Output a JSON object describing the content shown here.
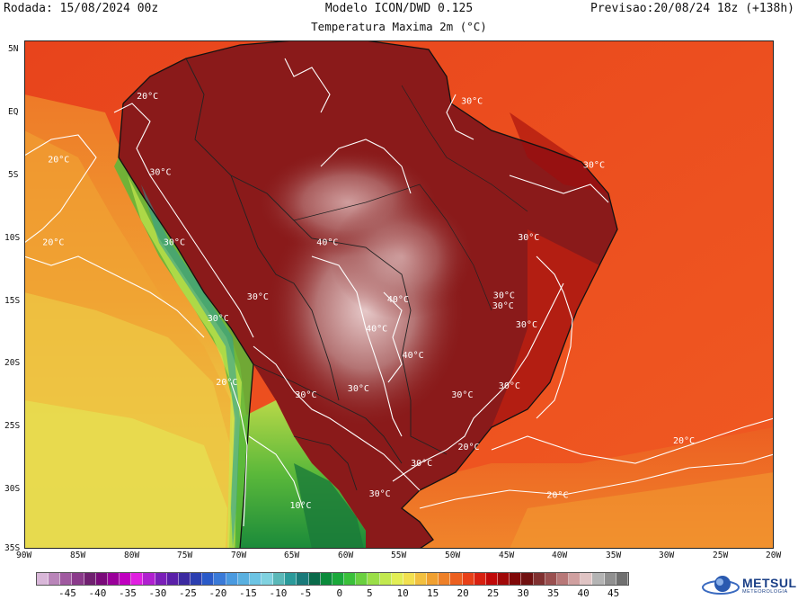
{
  "header": {
    "run": "Rodada: 15/08/2024 00z",
    "model": "Modelo ICON/DWD 0.125",
    "valid": "Previsao:20/08/24 18z (+138h)",
    "subtitle": "Temperatura Maxima 2m (°C)"
  },
  "axes": {
    "lat_labels": [
      "5N",
      "EQ",
      "5S",
      "10S",
      "15S",
      "20S",
      "25S",
      "30S",
      "35S"
    ],
    "lon_labels": [
      "90W",
      "85W",
      "80W",
      "75W",
      "70W",
      "65W",
      "60W",
      "55W",
      "50W",
      "45W",
      "40W",
      "35W",
      "30W",
      "25W",
      "20W"
    ]
  },
  "colorbar": {
    "labels": [
      "-45",
      "-40",
      "-35",
      "-30",
      "-25",
      "-20",
      "-15",
      "-10",
      "-5",
      "0",
      "5",
      "10",
      "15",
      "20",
      "25",
      "30",
      "35",
      "40",
      "45"
    ],
    "colors": [
      "#d9b7d9",
      "#b985b9",
      "#a05aa0",
      "#8a3a8a",
      "#702070",
      "#7a0a7a",
      "#9a009a",
      "#c000c0",
      "#e020e0",
      "#b020d0",
      "#7a1fb8",
      "#5a1fa8",
      "#3c2aa0",
      "#2c3fb0",
      "#2a5ac8",
      "#3a7ad8",
      "#4a9ae0",
      "#5ab0e0",
      "#6cc4e4",
      "#80d2e0",
      "#5ab8b8",
      "#2a9a9a",
      "#1a7a7a",
      "#0a6a4a",
      "#0a8a3a",
      "#1aa83a",
      "#3ac03a",
      "#6ad040",
      "#9ade48",
      "#c2e84e",
      "#e2ee55",
      "#f2e050",
      "#f2c040",
      "#f0a030",
      "#ee8028",
      "#ec6020",
      "#e84018",
      "#d82010",
      "#c00808",
      "#a00808",
      "#800808",
      "#701010",
      "#803030",
      "#9a5050",
      "#b87878",
      "#d0a0a0",
      "#e0c4c4",
      "#b4b4b4",
      "#909090",
      "#707070"
    ],
    "logo_text": "METSUL",
    "logo_sub": "METEOROLOGIA"
  },
  "contours": [
    {
      "label": "30°C",
      "lon": -49.2,
      "lat": 0.0
    },
    {
      "label": "30°C",
      "lon": -37.8,
      "lat": -5.0
    },
    {
      "label": "30°C",
      "lon": -43.9,
      "lat": -10.7
    },
    {
      "label": "30°C",
      "lon": -46.2,
      "lat": -15.3
    },
    {
      "label": "30°C",
      "lon": -46.3,
      "lat": -16.1
    },
    {
      "label": "30°C",
      "lon": -44.1,
      "lat": -17.6
    },
    {
      "label": "30°C",
      "lon": -45.7,
      "lat": -22.4
    },
    {
      "label": "30°C",
      "lon": -50.1,
      "lat": -23.1
    },
    {
      "label": "30°C",
      "lon": -59.8,
      "lat": -22.6
    },
    {
      "label": "30°C",
      "lon": -53.9,
      "lat": -28.5
    },
    {
      "label": "30°C",
      "lon": -78.3,
      "lat": -5.6
    },
    {
      "label": "30°C",
      "lon": -77.0,
      "lat": -11.1
    },
    {
      "label": "30°C",
      "lon": -69.2,
      "lat": -15.4
    },
    {
      "label": "30°C",
      "lon": -72.9,
      "lat": -17.1
    },
    {
      "label": "30°C",
      "lon": -64.7,
      "lat": -23.1
    },
    {
      "label": "20°C",
      "lon": -79.5,
      "lat": 0.4
    },
    {
      "label": "20°C",
      "lon": -87.8,
      "lat": -4.6
    },
    {
      "label": "20°C",
      "lon": -88.3,
      "lat": -11.1
    },
    {
      "label": "20°C",
      "lon": -72.1,
      "lat": -22.1
    },
    {
      "label": "20°C",
      "lon": -49.5,
      "lat": -27.2
    },
    {
      "label": "20°C",
      "lon": -41.2,
      "lat": -31.0
    },
    {
      "label": "20°C",
      "lon": -29.4,
      "lat": -26.7
    },
    {
      "label": "30°C",
      "lon": -57.8,
      "lat": -30.9
    },
    {
      "label": "40°C",
      "lon": -62.7,
      "lat": -11.1
    },
    {
      "label": "40°C",
      "lon": -56.1,
      "lat": -15.6
    },
    {
      "label": "40°C",
      "lon": -58.1,
      "lat": -17.9
    },
    {
      "label": "40°C",
      "lon": -54.7,
      "lat": -20.0
    },
    {
      "label": "10°C",
      "lon": -65.2,
      "lat": -31.8
    }
  ]
}
